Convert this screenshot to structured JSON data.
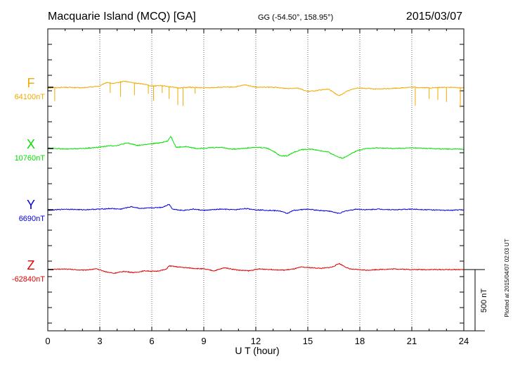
{
  "header": {
    "station": "Macquarie Island (MCQ)  [GA]",
    "coords": "GG (-54.50°, 158.95°)",
    "date": "2015/03/07"
  },
  "plotted_note": "Plotted at 2015/04/07 02:03 UT",
  "scale_bar_label": "500 nT",
  "chart_data": {
    "type": "line",
    "title": "Macquarie Island (MCQ)  [GA]",
    "xlabel": "U T (hour)",
    "ylabel": "",
    "xlim": [
      0,
      24
    ],
    "x_ticks": [
      0,
      3,
      6,
      9,
      12,
      15,
      18,
      21,
      24
    ],
    "grid": true,
    "scale_nT_per_division": 100,
    "series": [
      {
        "name": "F",
        "baseline_label": "64100nT",
        "color": "#f2a900",
        "baseline_nT": 0,
        "points": [
          [
            0,
            -5
          ],
          [
            1,
            0
          ],
          [
            2,
            -5
          ],
          [
            3,
            10
          ],
          [
            3.4,
            40
          ],
          [
            3.8,
            30
          ],
          [
            4.4,
            50
          ],
          [
            5,
            35
          ],
          [
            5.6,
            25
          ],
          [
            6,
            10
          ],
          [
            6.5,
            15
          ],
          [
            7,
            5
          ],
          [
            7.5,
            -5
          ],
          [
            8.2,
            0
          ],
          [
            9,
            -5
          ],
          [
            10,
            0
          ],
          [
            10.8,
            2
          ],
          [
            11.4,
            20
          ],
          [
            12,
            0
          ],
          [
            13,
            0
          ],
          [
            13.8,
            -10
          ],
          [
            14.4,
            -5
          ],
          [
            15,
            -35
          ],
          [
            15.6,
            -25
          ],
          [
            16.2,
            -15
          ],
          [
            16.8,
            -70
          ],
          [
            17.3,
            -30
          ],
          [
            17.8,
            -5
          ],
          [
            18.5,
            -10
          ],
          [
            19,
            -15
          ],
          [
            20,
            -8
          ],
          [
            21,
            0
          ],
          [
            22,
            -5
          ],
          [
            23,
            0
          ],
          [
            24,
            -5
          ]
        ],
        "spikes": [
          [
            0.4,
            -110
          ],
          [
            3.6,
            -80
          ],
          [
            4.2,
            -120
          ],
          [
            5.0,
            -100
          ],
          [
            5.8,
            -70
          ],
          [
            6.1,
            -120
          ],
          [
            6.6,
            -60
          ],
          [
            7.0,
            -100
          ],
          [
            7.5,
            -140
          ],
          [
            7.8,
            -150
          ],
          [
            8.5,
            -50
          ],
          [
            21.2,
            -150
          ],
          [
            22.0,
            -90
          ],
          [
            22.5,
            -100
          ],
          [
            23.0,
            -120
          ],
          [
            23.8,
            -160
          ]
        ]
      },
      {
        "name": "X",
        "baseline_label": "10760nT",
        "color": "#00e000",
        "baseline_nT": 0,
        "points": [
          [
            0,
            5
          ],
          [
            1,
            -5
          ],
          [
            2,
            0
          ],
          [
            2.8,
            8
          ],
          [
            3.4,
            20
          ],
          [
            4,
            25
          ],
          [
            4.6,
            45
          ],
          [
            5.2,
            25
          ],
          [
            5.8,
            35
          ],
          [
            6.4,
            45
          ],
          [
            6.9,
            60
          ],
          [
            7.1,
            100
          ],
          [
            7.4,
            10
          ],
          [
            8,
            15
          ],
          [
            8.6,
            0
          ],
          [
            9.2,
            5
          ],
          [
            10,
            10
          ],
          [
            10.6,
            -5
          ],
          [
            11.2,
            0
          ],
          [
            12,
            10
          ],
          [
            12.6,
            5
          ],
          [
            13,
            -20
          ],
          [
            13.4,
            -60
          ],
          [
            13.8,
            -60
          ],
          [
            14.2,
            -30
          ],
          [
            14.6,
            -10
          ],
          [
            15.2,
            -5
          ],
          [
            15.6,
            -15
          ],
          [
            16.2,
            -30
          ],
          [
            16.6,
            -60
          ],
          [
            17.0,
            -80
          ],
          [
            17.4,
            -50
          ],
          [
            17.8,
            -20
          ],
          [
            18.4,
            0
          ],
          [
            19,
            5
          ],
          [
            20,
            0
          ],
          [
            21,
            5
          ],
          [
            22,
            0
          ],
          [
            23,
            -5
          ],
          [
            24,
            -5
          ]
        ]
      },
      {
        "name": "Y",
        "baseline_label": "6690nT",
        "color": "#0000e0",
        "baseline_nT": 0,
        "points": [
          [
            0,
            -5
          ],
          [
            1,
            5
          ],
          [
            2,
            0
          ],
          [
            3,
            5
          ],
          [
            3.6,
            10
          ],
          [
            4.2,
            5
          ],
          [
            4.8,
            25
          ],
          [
            5.4,
            10
          ],
          [
            6,
            15
          ],
          [
            6.6,
            20
          ],
          [
            7.0,
            45
          ],
          [
            7.2,
            5
          ],
          [
            7.8,
            -5
          ],
          [
            8.4,
            5
          ],
          [
            9,
            -5
          ],
          [
            10,
            5
          ],
          [
            10.8,
            0
          ],
          [
            11.4,
            10
          ],
          [
            12,
            0
          ],
          [
            12.8,
            -5
          ],
          [
            13.4,
            -10
          ],
          [
            13.8,
            -30
          ],
          [
            14.2,
            -5
          ],
          [
            15,
            5
          ],
          [
            15.6,
            -5
          ],
          [
            16.2,
            -10
          ],
          [
            16.8,
            -30
          ],
          [
            17.2,
            -10
          ],
          [
            17.8,
            5
          ],
          [
            18.4,
            0
          ],
          [
            19,
            5
          ],
          [
            20,
            0
          ],
          [
            21,
            5
          ],
          [
            22,
            0
          ],
          [
            23,
            -5
          ],
          [
            24,
            0
          ]
        ]
      },
      {
        "name": "Z",
        "baseline_label": "-62840nT",
        "color": "#e00000",
        "baseline_nT": 0,
        "points": [
          [
            0,
            0
          ],
          [
            1,
            5
          ],
          [
            2,
            -5
          ],
          [
            2.8,
            5
          ],
          [
            3.4,
            -20
          ],
          [
            3.8,
            -30
          ],
          [
            4.4,
            -15
          ],
          [
            5,
            -25
          ],
          [
            5.6,
            -10
          ],
          [
            6.2,
            -15
          ],
          [
            6.8,
            0
          ],
          [
            7.0,
            30
          ],
          [
            7.6,
            20
          ],
          [
            8.4,
            10
          ],
          [
            9,
            5
          ],
          [
            9.6,
            -10
          ],
          [
            10.2,
            15
          ],
          [
            11,
            -5
          ],
          [
            11.6,
            -10
          ],
          [
            12.2,
            5
          ],
          [
            13,
            0
          ],
          [
            13.6,
            -5
          ],
          [
            14.2,
            5
          ],
          [
            14.6,
            20
          ],
          [
            15.2,
            15
          ],
          [
            15.8,
            10
          ],
          [
            16.4,
            20
          ],
          [
            16.8,
            50
          ],
          [
            17.4,
            5
          ],
          [
            17.8,
            0
          ],
          [
            18.4,
            -5
          ],
          [
            19,
            0
          ],
          [
            20,
            5
          ],
          [
            21,
            0
          ],
          [
            22,
            0
          ],
          [
            23,
            0
          ],
          [
            24,
            0
          ]
        ]
      }
    ]
  }
}
